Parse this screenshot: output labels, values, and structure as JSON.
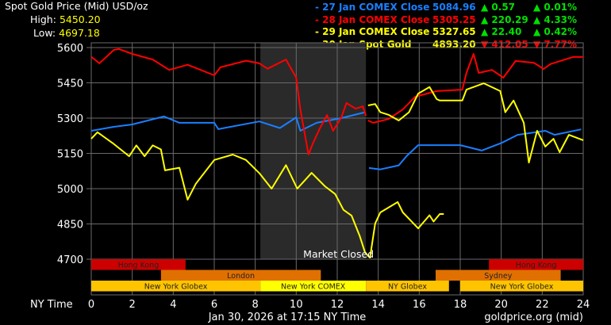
{
  "header": {
    "title": "Spot Gold Price (Mid) USD/oz",
    "high_label": "High:",
    "high_value": "5450.20",
    "low_label": "Low:",
    "low_value": "4697.18"
  },
  "legend": [
    {
      "label": "- 27 Jan COMEX Close",
      "price": "5084.96",
      "arrow": "▲",
      "change": "0.57",
      "pct_arrow": "▲",
      "pct": "0.01%",
      "color": "#1a7fff",
      "change_color": "#00e000"
    },
    {
      "label": "- 28 Jan COMEX Close",
      "price": "5305.25",
      "arrow": "▲",
      "change": "220.29",
      "pct_arrow": "▲",
      "pct": "4.33%",
      "color": "#ff0000",
      "change_color": "#00e000"
    },
    {
      "label": "- 29 Jan COMEX Close",
      "price": "5327.65",
      "arrow": "▲",
      "change": "22.40",
      "pct_arrow": "▲",
      "pct": "0.42%",
      "color": "#ffff00",
      "change_color": "#00e000"
    },
    {
      "label": "- 30 Jan Spot Gold",
      "price": "4893.20",
      "arrow": "▼",
      "change": "412.05",
      "pct_arrow": "▼",
      "pct": "7.77%",
      "color": "#ffff00",
      "change_color": "#ff0000"
    }
  ],
  "footer": {
    "xaxis_label": "NY Time",
    "timestamp": "Jan 30, 2026 at 17:15 NY Time",
    "source": "goldprice.org (mid)"
  },
  "chart_data": {
    "type": "line",
    "xlim": [
      0,
      24
    ],
    "ylim": [
      4700,
      5600
    ],
    "x_ticks": [
      0,
      2,
      4,
      6,
      8,
      10,
      12,
      14,
      16,
      18,
      20,
      22,
      24
    ],
    "y_ticks": [
      4700,
      4850,
      5000,
      5150,
      5300,
      5450,
      5600
    ],
    "grid": true,
    "market_closed": {
      "label": "Market Closed",
      "from": 8.25,
      "to": 13.4,
      "color": "#2a2a2a"
    },
    "sessions": [
      {
        "label": "Hong Kong",
        "row": 0,
        "from": 0,
        "to": 4.6,
        "color": "#cc0000"
      },
      {
        "label": "Hong Kong",
        "row": 0,
        "from": 19.4,
        "to": 24,
        "color": "#cc0000"
      },
      {
        "label": "London",
        "row": 1,
        "from": 3.4,
        "to": 11.2,
        "color": "#e07000"
      },
      {
        "label": "Sydney",
        "row": 1,
        "from": 16.8,
        "to": 22.9,
        "color": "#e07000"
      },
      {
        "label": "New York Globex",
        "row": 2,
        "from": 0,
        "to": 8.25,
        "color": "#ffc400"
      },
      {
        "label": "New York COMEX",
        "row": 2,
        "from": 8.25,
        "to": 13.4,
        "color": "#ffff00"
      },
      {
        "label": "NY Globex",
        "row": 2,
        "from": 13.4,
        "to": 17.45,
        "color": "#ffc400"
      },
      {
        "label": "New York Globex",
        "row": 2,
        "from": 18,
        "to": 24,
        "color": "#ffc400"
      }
    ],
    "series": [
      {
        "name": "27 Jan COMEX Close",
        "color": "#1a7fff",
        "segments": [
          [
            [
              0,
              5246
            ],
            [
              1.1,
              5263
            ],
            [
              2,
              5273
            ],
            [
              3.55,
              5307
            ],
            [
              4.3,
              5280
            ],
            [
              6,
              5280
            ],
            [
              6.2,
              5253
            ],
            [
              8.2,
              5286
            ],
            [
              9.2,
              5258
            ],
            [
              10,
              5303
            ],
            [
              10.2,
              5246
            ],
            [
              11,
              5280
            ],
            [
              12.2,
              5300
            ],
            [
              13.35,
              5325
            ]
          ],
          [
            [
              13.55,
              5088
            ],
            [
              14.1,
              5082
            ],
            [
              15,
              5099
            ],
            [
              15.4,
              5140
            ],
            [
              15.95,
              5185
            ],
            [
              18,
              5185
            ],
            [
              19.05,
              5162
            ],
            [
              20.05,
              5196
            ],
            [
              20.8,
              5229
            ],
            [
              22.15,
              5246
            ],
            [
              22.6,
              5229
            ],
            [
              23.9,
              5252
            ]
          ]
        ]
      },
      {
        "name": "28 Jan COMEX Close",
        "color": "#ff0000",
        "segments": [
          [
            [
              0,
              5561
            ],
            [
              0.4,
              5533
            ],
            [
              1.1,
              5590
            ],
            [
              1.35,
              5594
            ],
            [
              2,
              5573
            ],
            [
              3,
              5549
            ],
            [
              3.8,
              5505
            ],
            [
              4.7,
              5527
            ],
            [
              6,
              5482
            ],
            [
              6.3,
              5516
            ],
            [
              7.55,
              5544
            ],
            [
              8.2,
              5533
            ],
            [
              8.6,
              5510
            ],
            [
              9.5,
              5549
            ],
            [
              10,
              5472
            ],
            [
              10.2,
              5337
            ],
            [
              10.6,
              5145
            ],
            [
              10.8,
              5190
            ],
            [
              11.15,
              5256
            ],
            [
              11.5,
              5313
            ],
            [
              11.8,
              5246
            ],
            [
              12.2,
              5303
            ],
            [
              12.45,
              5364
            ],
            [
              12.9,
              5340
            ],
            [
              13.25,
              5350
            ],
            [
              13.4,
              5310
            ]
          ],
          [
            [
              13.5,
              5290
            ],
            [
              13.75,
              5280
            ],
            [
              14.5,
              5296
            ],
            [
              15.2,
              5337
            ],
            [
              15.8,
              5391
            ],
            [
              16.85,
              5415
            ],
            [
              18.1,
              5421
            ],
            [
              18.3,
              5492
            ],
            [
              18.65,
              5573
            ],
            [
              18.9,
              5492
            ],
            [
              19.55,
              5505
            ],
            [
              20.1,
              5472
            ],
            [
              20.7,
              5543
            ],
            [
              21.6,
              5535
            ],
            [
              22.07,
              5509
            ],
            [
              22.4,
              5530
            ],
            [
              23.5,
              5560
            ],
            [
              24,
              5560
            ]
          ]
        ]
      },
      {
        "name": "29 Jan COMEX Close",
        "color": "#ffff00",
        "segments": [
          [
            [
              13.5,
              5354
            ],
            [
              13.85,
              5360
            ],
            [
              14.1,
              5325
            ],
            [
              14.5,
              5314
            ],
            [
              15,
              5290
            ],
            [
              15.5,
              5325
            ],
            [
              15.95,
              5404
            ],
            [
              16.5,
              5432
            ],
            [
              16.85,
              5381
            ],
            [
              17,
              5375
            ],
            [
              18.1,
              5375
            ],
            [
              18.3,
              5421
            ],
            [
              19.15,
              5448
            ],
            [
              19.95,
              5415
            ],
            [
              20.2,
              5325
            ],
            [
              20.6,
              5375
            ],
            [
              21.1,
              5280
            ],
            [
              21.35,
              5111
            ],
            [
              21.75,
              5246
            ],
            [
              22.15,
              5179
            ],
            [
              22.55,
              5212
            ],
            [
              22.85,
              5155
            ],
            [
              23.3,
              5229
            ],
            [
              24,
              5206
            ]
          ]
        ]
      },
      {
        "name": "30 Jan Spot Gold",
        "color": "#ffff00",
        "segments": [
          [
            [
              0,
              5212
            ],
            [
              0.3,
              5240
            ],
            [
              1.1,
              5190
            ],
            [
              1.85,
              5138
            ],
            [
              2.2,
              5184
            ],
            [
              2.6,
              5138
            ],
            [
              3,
              5184
            ],
            [
              3.4,
              5167
            ],
            [
              3.6,
              5078
            ],
            [
              4.3,
              5089
            ],
            [
              4.7,
              4953
            ],
            [
              5.1,
              5021
            ],
            [
              6,
              5122
            ],
            [
              6.9,
              5145
            ],
            [
              7.55,
              5122
            ],
            [
              8.2,
              5066
            ],
            [
              8.8,
              5000
            ],
            [
              9.5,
              5100
            ],
            [
              10.05,
              5000
            ],
            [
              10.75,
              5067
            ],
            [
              11.4,
              5010
            ],
            [
              11.9,
              4977
            ],
            [
              12.3,
              4910
            ],
            [
              12.7,
              4885
            ],
            [
              13.1,
              4798
            ],
            [
              13.35,
              4730
            ],
            [
              13.55,
              4710
            ],
            [
              13.6,
              4707
            ],
            [
              13.85,
              4852
            ],
            [
              14.1,
              4899
            ],
            [
              14.95,
              4943
            ],
            [
              15.2,
              4899
            ],
            [
              15.95,
              4831
            ],
            [
              16.5,
              4887
            ],
            [
              16.7,
              4860
            ],
            [
              17,
              4892
            ],
            [
              17.2,
              4892
            ]
          ]
        ]
      }
    ]
  }
}
